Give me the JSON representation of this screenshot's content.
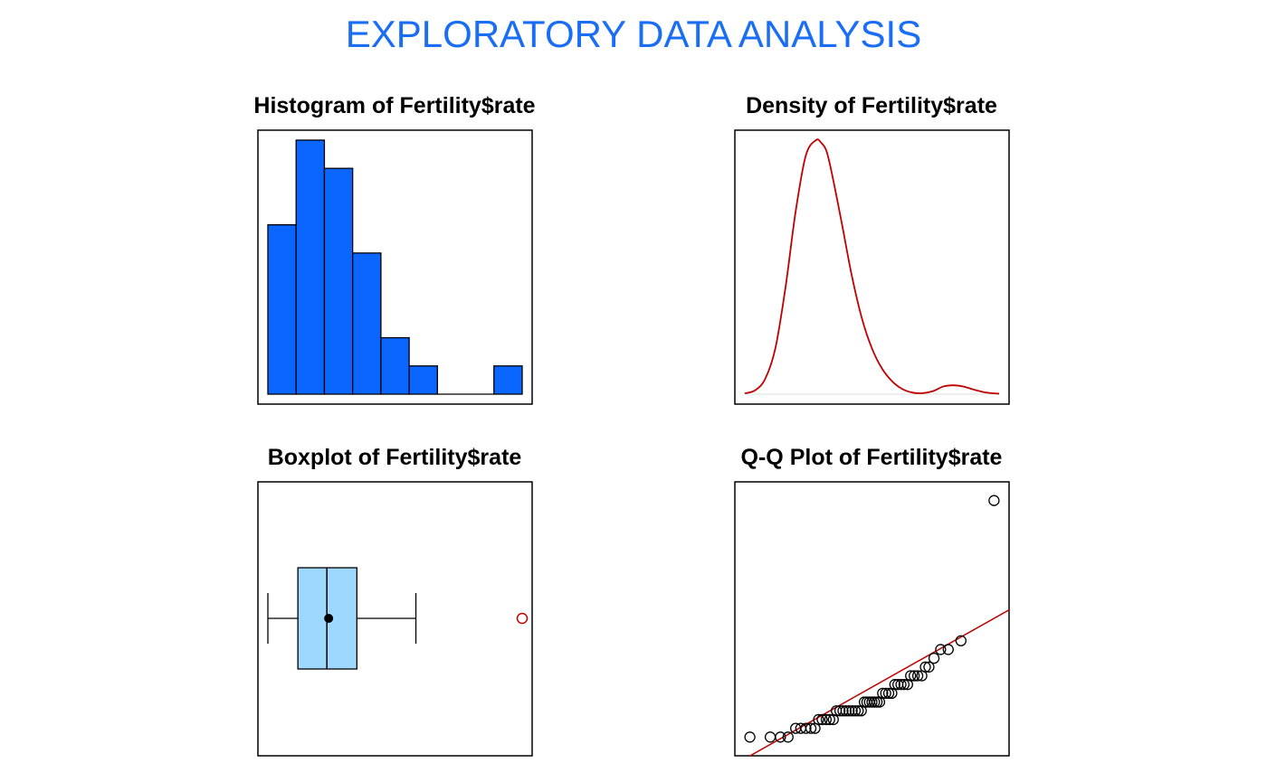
{
  "page": {
    "title": "EXPLORATORY  DATA  ANALYSIS",
    "title_color": "#1a6ef5"
  },
  "colors": {
    "histogram_fill": "#0b66ff",
    "density_line": "#c00000",
    "box_fill": "#9fd8ff",
    "outlier": "#c00000",
    "qq_line": "#c00000",
    "frame": "#000000"
  },
  "chart_data": [
    {
      "type": "bar",
      "subtype": "histogram",
      "title": "Histogram of Fertility$rate",
      "bins": 9,
      "counts": [
        6,
        9,
        8,
        5,
        2,
        1,
        0,
        0,
        1
      ],
      "axes_shown": false,
      "grid": false
    },
    {
      "type": "line",
      "subtype": "density",
      "title": "Density of Fertility$rate",
      "x": [
        0,
        0.04,
        0.08,
        0.12,
        0.16,
        0.2,
        0.24,
        0.28,
        0.3,
        0.32,
        0.34,
        0.38,
        0.42,
        0.46,
        0.5,
        0.54,
        0.58,
        0.62,
        0.66,
        0.7,
        0.74,
        0.78,
        0.82,
        0.86,
        0.9,
        0.94,
        0.98,
        1.0
      ],
      "y": [
        0.003,
        0.015,
        0.06,
        0.18,
        0.42,
        0.72,
        0.94,
        1.0,
        0.99,
        0.96,
        0.88,
        0.68,
        0.47,
        0.3,
        0.18,
        0.1,
        0.05,
        0.02,
        0.006,
        0.004,
        0.012,
        0.03,
        0.035,
        0.03,
        0.018,
        0.008,
        0.003,
        0.002
      ],
      "axes_shown": false,
      "grid": false
    },
    {
      "type": "boxplot",
      "title": "Boxplot of Fertility$rate",
      "orientation": "horizontal",
      "whisker_low": 0.0,
      "q1": 0.118,
      "median": 0.232,
      "mean": 0.239,
      "q3": 0.35,
      "whisker_high": 0.582,
      "outliers": [
        1.0
      ],
      "axes_shown": false
    },
    {
      "type": "scatter",
      "subtype": "qq",
      "title": "Q-Q Plot of Fertility$rate",
      "theoretical": [
        -2.4,
        -2.0,
        -1.8,
        -1.65,
        -1.5,
        -1.4,
        -1.3,
        -1.2,
        -1.12,
        -1.05,
        -0.98,
        -0.9,
        -0.83,
        -0.76,
        -0.7,
        -0.63,
        -0.57,
        -0.51,
        -0.45,
        -0.39,
        -0.33,
        -0.27,
        -0.21,
        -0.15,
        -0.1,
        -0.05,
        0.0,
        0.05,
        0.1,
        0.15,
        0.21,
        0.27,
        0.33,
        0.39,
        0.45,
        0.51,
        0.57,
        0.63,
        0.7,
        0.76,
        0.83,
        0.9,
        0.98,
        1.05,
        1.12,
        1.22,
        1.35,
        1.5,
        1.75,
        2.4
      ],
      "sample": [
        -2.2,
        -2.2,
        -2.2,
        -2.2,
        -2.1,
        -2.1,
        -2.1,
        -2.1,
        -2.1,
        -2.0,
        -2.0,
        -2.0,
        -2.0,
        -2.0,
        -1.9,
        -1.9,
        -1.9,
        -1.9,
        -1.9,
        -1.9,
        -1.9,
        -1.9,
        -1.9,
        -1.8,
        -1.8,
        -1.8,
        -1.8,
        -1.8,
        -1.8,
        -1.8,
        -1.7,
        -1.7,
        -1.7,
        -1.7,
        -1.6,
        -1.6,
        -1.6,
        -1.6,
        -1.6,
        -1.5,
        -1.5,
        -1.5,
        -1.5,
        -1.4,
        -1.4,
        -1.3,
        -1.2,
        -1.2,
        -1.1,
        0.5
      ],
      "xlim": [
        -2.5,
        2.5
      ],
      "ylim": [
        -2.3,
        0.6
      ],
      "reference_line": {
        "intercept": -1.63,
        "slope": 0.327
      },
      "axes_shown": false
    }
  ]
}
